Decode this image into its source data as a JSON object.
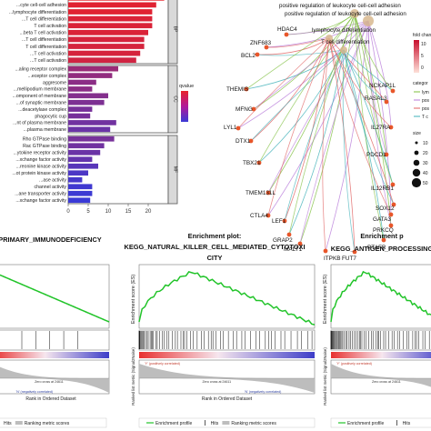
{
  "chart_data": [
    {
      "type": "bar",
      "orientation": "horizontal",
      "groups": [
        {
          "name": "BP",
          "count": 10
        },
        {
          "name": "CC",
          "count": 10
        },
        {
          "name": "MF",
          "count": 10
        }
      ],
      "categories": [
        "...e cell-cell adhesion",
        "...cyte cell-cell adhesion",
        "...lymphocyte differentiation",
        "...T cell differentiation",
        "T cell activation",
        "...beta T cell activation",
        "...T cell differentiation",
        "T cell differentiation",
        "...T cell activation",
        "...T cell activation",
        "...aling receptor complex",
        "...eceptor complex",
        "aggresome",
        "...mellipodium membrane",
        "...omponent of membrane",
        "...of synaptic membrane",
        "...deacetylase complex",
        "phagocytic cup",
        "...nt of plasma membrane",
        "...plasma membrane",
        "Rho GTPase binding",
        "Rac GTPase binding",
        "...ytokine receptor activity",
        "...xchange factor activity",
        "...reonine kinase activity",
        "...ot protein kinase activity",
        "...ase activity",
        "channel activity",
        "...ane transporter activity",
        "...xchange factor activity"
      ],
      "values": [
        24,
        22,
        21,
        21,
        21,
        20,
        19,
        19,
        18,
        17,
        12.5,
        11,
        7,
        6,
        10,
        9,
        6,
        5.5,
        12,
        10.5,
        11.5,
        9,
        8,
        6,
        7.5,
        5,
        3.5,
        6,
        6,
        5.5
      ],
      "qvalue": [
        0.002,
        0.003,
        0.003,
        0.004,
        0.004,
        0.004,
        0.005,
        0.005,
        0.005,
        0.006,
        0.02,
        0.022,
        0.024,
        0.024,
        0.026,
        0.028,
        0.03,
        0.03,
        0.032,
        0.034,
        0.03,
        0.032,
        0.034,
        0.036,
        0.04,
        0.044,
        0.046,
        0.048,
        0.049,
        0.05
      ],
      "xticks": [
        0,
        5,
        10,
        15,
        20
      ],
      "xlim": [
        0,
        25
      ],
      "legend_title": "qvalue",
      "legend_position": "right",
      "color_low": "#e8212a",
      "color_high": "#3a3ad6"
    },
    {
      "type": "network",
      "terms": [
        "positive regulation of leukocyte cell-cell adhesion",
        "positive regulation of leukocyte cell-cell adhesion",
        "lymphocyte differentiation",
        "T cell differentiation"
      ],
      "genes": [
        "HDAC4",
        "ZNF683",
        "BCL2",
        "THEMIS",
        "MFNG",
        "LYL1",
        "DTX1",
        "TBX21",
        "TMEM131L",
        "CTLA4",
        "LEF1",
        "GRAP2",
        "MALT1",
        "ITPKB",
        "FUT7",
        "PTAFR",
        "PRKCQ",
        "GATA3",
        "SOX12",
        "IL12RB1",
        "PDCD1",
        "IL27RA",
        "RASAL3",
        "NCKAP1L"
      ],
      "legend": {
        "fold_change_title": "fold chan",
        "fold_change_ticks": [
          "10",
          "5",
          "0"
        ],
        "category_title": "categor",
        "categories": [
          "lym",
          "pos",
          "pos",
          "T c"
        ],
        "size_title": "size",
        "size_ticks": [
          "10",
          "20",
          "30",
          "40",
          "50"
        ]
      }
    },
    {
      "type": "gsea",
      "title_line1": "PRIMARY_IMMUNODEFICIENCY",
      "title_line2": "",
      "ylabel": "",
      "ranked_ylabel": "",
      "xlabel": "Rank in Ordered Dataset",
      "pos_label": "",
      "neg_label": "'N' (negatively correlated)",
      "zero_cross": "Zero cross at 24611",
      "legend": [
        "Hits",
        "Ranking metric scores"
      ]
    },
    {
      "type": "gsea",
      "title_line1": "Enrichment plot:",
      "title_line2": "KEGG_NATURAL_KILLER_CELL_MEDIATED_CYTOTOXI",
      "title_line3": "CITY",
      "ylabel": "Enrichment score (ES)",
      "ranked_ylabel": "Ranked list metric (Signal2Noise)",
      "xlabel": "Rank in Ordered Dataset",
      "pos_label": "'Y' (positively correlated)",
      "neg_label": "'N' (negatively correlated)",
      "zero_cross": "Zero cross at 24611",
      "legend": [
        "Enrichment profile",
        "Hits",
        "Ranking metric scores"
      ]
    },
    {
      "type": "gsea",
      "title_line1": "Enrichment p",
      "title_line2": "KEGG_ANTIGEN_PROCESSING",
      "ylabel": "Enrichment score (ES)",
      "ranked_ylabel": "Ranked list metric (Signal2Noise)",
      "xlabel": "",
      "pos_label": "'Y' (positively correlated)",
      "neg_label": "",
      "zero_cross": "Zero cross at 24611",
      "legend": [
        "Enrichment profile",
        "Hits"
      ]
    }
  ]
}
